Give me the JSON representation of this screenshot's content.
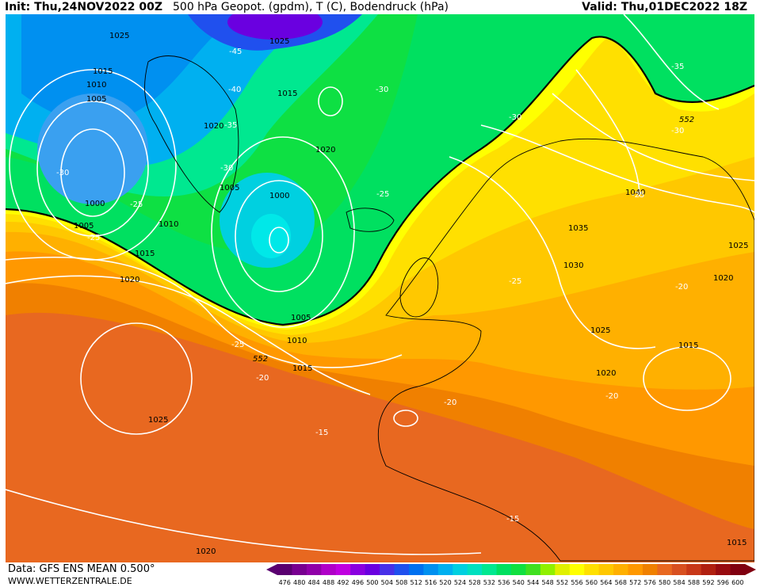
{
  "header": {
    "init": "Init: Thu,24NOV2022 00Z",
    "title": "500 hPa Geopot. (gpdm), T (C), Bodendruck (hPa)",
    "valid": "Valid: Thu,01DEC2022 18Z"
  },
  "footer": {
    "data_source": "Data: GFS ENS MEAN 0.500°",
    "website": "WWW.WETTERZENTRALE.DE"
  },
  "legend": {
    "values": [
      "476",
      "480",
      "484",
      "488",
      "492",
      "496",
      "500",
      "504",
      "508",
      "512",
      "516",
      "520",
      "524",
      "528",
      "532",
      "536",
      "540",
      "544",
      "548",
      "552",
      "556",
      "560",
      "564",
      "568",
      "572",
      "576",
      "580",
      "584",
      "588",
      "592",
      "596",
      "600"
    ],
    "colors": [
      "#5a0070",
      "#780090",
      "#9000a8",
      "#b000c8",
      "#c000e0",
      "#8a00e0",
      "#6a00e0",
      "#4830e8",
      "#2050ee",
      "#0070f0",
      "#0090f0",
      "#00b0f0",
      "#00d0e0",
      "#00e0c0",
      "#00e890",
      "#00e060",
      "#10e040",
      "#40e020",
      "#90f000",
      "#e0f000",
      "#ffff00",
      "#ffe000",
      "#ffc800",
      "#ffb000",
      "#ff9800",
      "#f08000",
      "#e86820",
      "#d85020",
      "#c83818",
      "#b02010",
      "#980c10",
      "#800010"
    ]
  },
  "geopotential_contour_label": "552",
  "pressure_labels": [
    "1025",
    "1015",
    "1010",
    "1005",
    "1020",
    "1000",
    "1005",
    "1015",
    "1010",
    "1005",
    "1000",
    "1020",
    "1025",
    "1015",
    "1020",
    "1025",
    "1015",
    "1010",
    "1005",
    "1030",
    "1035",
    "1040",
    "1025",
    "1020",
    "1015",
    "1020",
    "1025",
    "1020",
    "1015"
  ],
  "temperature_labels": [
    "-45",
    "-40",
    "-35",
    "-30",
    "-30",
    "-30",
    "-25",
    "-25",
    "-30",
    "-25",
    "-35",
    "-30",
    "-25",
    "-25",
    "-20",
    "-20",
    "-20",
    "-20",
    "-15",
    "-15",
    "-25"
  ]
}
